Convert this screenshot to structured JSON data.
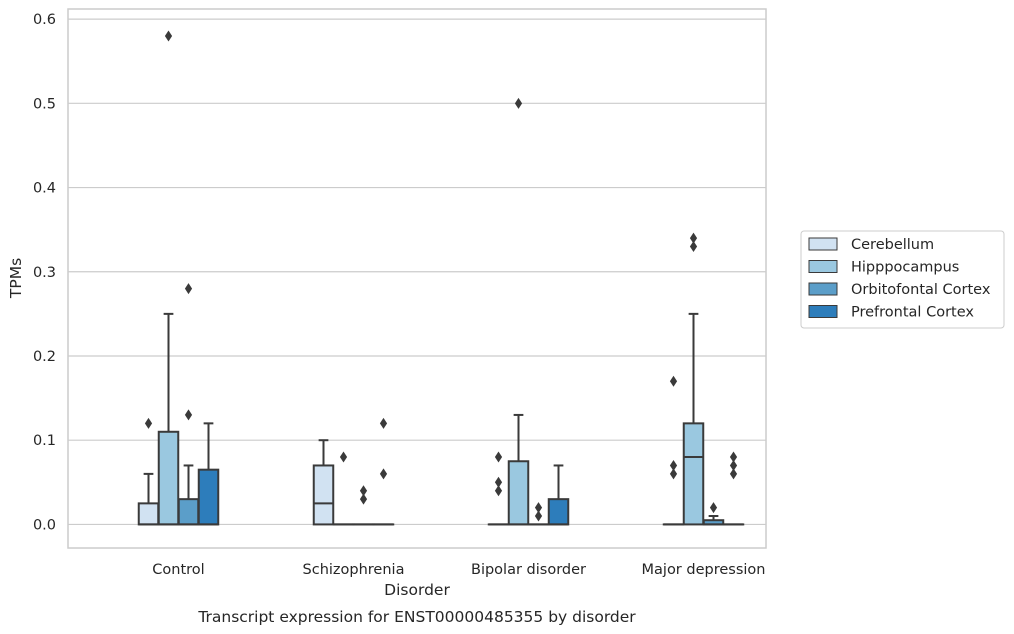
{
  "chart_data": {
    "type": "box",
    "title": "Transcript expression for ENST00000485355 by disorder",
    "xlabel": "Disorder",
    "ylabel": "TPMs",
    "ylim": [
      -0.028,
      0.612
    ],
    "yticks": [
      "0.0",
      "0.1",
      "0.2",
      "0.3",
      "0.4",
      "0.5",
      "0.6"
    ],
    "grid": true,
    "legend_position": "right",
    "categories": [
      "Control",
      "Schizophrenia",
      "Bipolar disorder",
      "Major depression"
    ],
    "series": [
      {
        "name": "Cerebellum",
        "color": "#d1e2f2",
        "boxes": [
          {
            "q1": 0.0,
            "median": 0.0,
            "q3": 0.025,
            "whisker_low": 0.0,
            "whisker_high": 0.06,
            "outliers": [
              0.12
            ]
          },
          {
            "q1": 0.0,
            "median": 0.025,
            "q3": 0.07,
            "whisker_low": 0.0,
            "whisker_high": 0.1,
            "outliers": []
          },
          {
            "q1": 0.0,
            "median": 0.0,
            "q3": 0.0,
            "whisker_low": 0.0,
            "whisker_high": 0.0,
            "outliers": [
              0.04,
              0.05,
              0.08
            ]
          },
          {
            "q1": 0.0,
            "median": 0.0,
            "q3": 0.0,
            "whisker_low": 0.0,
            "whisker_high": 0.0,
            "outliers": [
              0.06,
              0.07,
              0.17
            ]
          }
        ]
      },
      {
        "name": "Hipppocampus",
        "color": "#9ac8e0",
        "boxes": [
          {
            "q1": 0.0,
            "median": 0.0,
            "q3": 0.11,
            "whisker_low": 0.0,
            "whisker_high": 0.25,
            "outliers": [
              0.58
            ]
          },
          {
            "q1": 0.0,
            "median": 0.0,
            "q3": 0.0,
            "whisker_low": 0.0,
            "whisker_high": 0.0,
            "outliers": [
              0.08
            ]
          },
          {
            "q1": 0.0,
            "median": 0.0,
            "q3": 0.075,
            "whisker_low": 0.0,
            "whisker_high": 0.13,
            "outliers": [
              0.5
            ]
          },
          {
            "q1": 0.0,
            "median": 0.08,
            "q3": 0.12,
            "whisker_low": 0.0,
            "whisker_high": 0.25,
            "outliers": [
              0.33,
              0.34
            ]
          }
        ]
      },
      {
        "name": "Orbitofontal Cortex",
        "color": "#5b9ec9",
        "boxes": [
          {
            "q1": 0.0,
            "median": 0.0,
            "q3": 0.03,
            "whisker_low": 0.0,
            "whisker_high": 0.07,
            "outliers": [
              0.13,
              0.28
            ]
          },
          {
            "q1": 0.0,
            "median": 0.0,
            "q3": 0.0,
            "whisker_low": 0.0,
            "whisker_high": 0.0,
            "outliers": [
              0.03,
              0.04
            ]
          },
          {
            "q1": 0.0,
            "median": 0.0,
            "q3": 0.0,
            "whisker_low": 0.0,
            "whisker_high": 0.0,
            "outliers": [
              0.01,
              0.02
            ]
          },
          {
            "q1": 0.0,
            "median": 0.0,
            "q3": 0.005,
            "whisker_low": 0.0,
            "whisker_high": 0.01,
            "outliers": [
              0.02
            ]
          }
        ]
      },
      {
        "name": "Prefrontal Cortex",
        "color": "#2d7dbb",
        "boxes": [
          {
            "q1": 0.0,
            "median": 0.0,
            "q3": 0.065,
            "whisker_low": 0.0,
            "whisker_high": 0.12,
            "outliers": []
          },
          {
            "q1": 0.0,
            "median": 0.0,
            "q3": 0.0,
            "whisker_low": 0.0,
            "whisker_high": 0.0,
            "outliers": [
              0.06,
              0.12
            ]
          },
          {
            "q1": 0.0,
            "median": 0.0,
            "q3": 0.03,
            "whisker_low": 0.0,
            "whisker_high": 0.07,
            "outliers": []
          },
          {
            "q1": 0.0,
            "median": 0.0,
            "q3": 0.0,
            "whisker_low": 0.0,
            "whisker_high": 0.0,
            "outliers": [
              0.06,
              0.07,
              0.08
            ]
          }
        ]
      }
    ]
  }
}
